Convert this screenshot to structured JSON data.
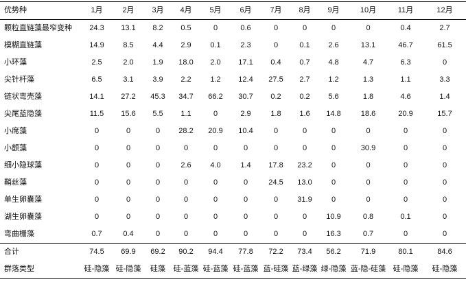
{
  "table": {
    "corner_label": "优势种",
    "months": [
      "1月",
      "2月",
      "3月",
      "4月",
      "5月",
      "6月",
      "7月",
      "8月",
      "9月",
      "10月",
      "11月",
      "12月"
    ],
    "rows": [
      {
        "name": "颗粒直链藻最窄变种",
        "values": [
          "24.3",
          "13.1",
          "8.2",
          "0.5",
          "0",
          "0.6",
          "0",
          "0",
          "0",
          "0",
          "0.4",
          "2.7"
        ],
        "bold": [
          true,
          true,
          false,
          false,
          false,
          false,
          false,
          false,
          false,
          false,
          false,
          false
        ]
      },
      {
        "name": "模糊直链藻",
        "values": [
          "14.9",
          "8.5",
          "4.4",
          "2.9",
          "0.1",
          "2.3",
          "0",
          "0.1",
          "2.6",
          "13.1",
          "46.7",
          "61.5"
        ],
        "bold": [
          true,
          false,
          false,
          false,
          false,
          false,
          false,
          false,
          false,
          true,
          true,
          true
        ]
      },
      {
        "name": "小环藻",
        "values": [
          "2.5",
          "2.0",
          "1.9",
          "18.0",
          "2.0",
          "17.1",
          "0.4",
          "0.7",
          "4.8",
          "4.7",
          "6.3",
          "0"
        ],
        "bold": [
          false,
          false,
          false,
          true,
          false,
          true,
          false,
          false,
          false,
          false,
          false,
          false
        ]
      },
      {
        "name": "尖针杆藻",
        "values": [
          "6.5",
          "3.1",
          "3.9",
          "2.2",
          "1.2",
          "12.4",
          "27.5",
          "2.7",
          "1.2",
          "1.3",
          "1.1",
          "3.3"
        ],
        "bold": [
          false,
          false,
          false,
          false,
          false,
          true,
          true,
          false,
          false,
          false,
          false,
          false
        ]
      },
      {
        "name": "链状弯壳藻",
        "values": [
          "14.1",
          "27.2",
          "45.3",
          "34.7",
          "66.2",
          "30.7",
          "0.2",
          "0.2",
          "5.6",
          "1.8",
          "4.6",
          "1.4"
        ],
        "bold": [
          true,
          true,
          true,
          true,
          true,
          true,
          false,
          false,
          false,
          false,
          false,
          false
        ]
      },
      {
        "name": "尖尾蓝隐藻",
        "values": [
          "11.5",
          "15.6",
          "5.5",
          "1.1",
          "0",
          "2.9",
          "1.8",
          "1.6",
          "14.8",
          "18.6",
          "20.9",
          "15.7"
        ],
        "bold": [
          true,
          true,
          false,
          false,
          false,
          false,
          false,
          false,
          true,
          true,
          true,
          true
        ]
      },
      {
        "name": "小席藻",
        "values": [
          "0",
          "0",
          "0",
          "28.2",
          "20.9",
          "10.4",
          "0",
          "0",
          "0",
          "0",
          "0",
          "0"
        ],
        "bold": [
          false,
          false,
          false,
          true,
          true,
          true,
          false,
          false,
          false,
          false,
          false,
          false
        ]
      },
      {
        "name": "小颤藻",
        "values": [
          "0",
          "0",
          "0",
          "0",
          "0",
          "0",
          "0",
          "0",
          "0",
          "30.9",
          "0",
          "0"
        ],
        "bold": [
          false,
          false,
          false,
          false,
          false,
          false,
          false,
          false,
          false,
          true,
          false,
          false
        ]
      },
      {
        "name": "细小隐球藻",
        "values": [
          "0",
          "0",
          "0",
          "2.6",
          "4.0",
          "1.4",
          "17.8",
          "23.2",
          "0",
          "0",
          "0",
          "0"
        ],
        "bold": [
          false,
          false,
          false,
          false,
          false,
          false,
          true,
          true,
          false,
          false,
          false,
          false
        ]
      },
      {
        "name": "鞘丝藻",
        "values": [
          "0",
          "0",
          "0",
          "0",
          "0",
          "0",
          "24.5",
          "13.0",
          "0",
          "0",
          "0",
          "0"
        ],
        "bold": [
          false,
          false,
          false,
          false,
          false,
          false,
          true,
          true,
          false,
          false,
          false,
          false
        ]
      },
      {
        "name": "单生卵囊藻",
        "values": [
          "0",
          "0",
          "0",
          "0",
          "0",
          "0",
          "0",
          "31.9",
          "0",
          "0",
          "0",
          "0"
        ],
        "bold": [
          false,
          false,
          false,
          false,
          false,
          false,
          false,
          true,
          false,
          false,
          false,
          false
        ]
      },
      {
        "name": "湖生卵囊藻",
        "values": [
          "0",
          "0",
          "0",
          "0",
          "0",
          "0",
          "0",
          "0",
          "10.9",
          "0.8",
          "0.1",
          "0"
        ],
        "bold": [
          false,
          false,
          false,
          false,
          false,
          false,
          false,
          false,
          true,
          false,
          false,
          false
        ]
      },
      {
        "name": "弯曲栅藻",
        "values": [
          "0.7",
          "0.4",
          "0",
          "0",
          "0",
          "0",
          "0",
          "0",
          "16.3",
          "0.7",
          "0",
          "0"
        ],
        "bold": [
          false,
          false,
          false,
          false,
          false,
          false,
          false,
          false,
          true,
          false,
          false,
          false
        ]
      }
    ],
    "total": {
      "name": "合计",
      "values": [
        "74.5",
        "69.9",
        "69.2",
        "90.2",
        "94.4",
        "77.8",
        "72.2",
        "73.4",
        "56.2",
        "71.9",
        "80.1",
        "84.6"
      ]
    },
    "community": {
      "name": "群落类型",
      "values": [
        "硅-隐藻",
        "硅-隐藻",
        "硅藻",
        "硅-蓝藻",
        "硅-蓝藻",
        "硅-蓝藻",
        "蓝-硅藻",
        "蓝-绿藻",
        "绿-隐藻",
        "蓝-隐-硅藻",
        "硅-隐藻",
        "硅-隐藻"
      ]
    }
  }
}
